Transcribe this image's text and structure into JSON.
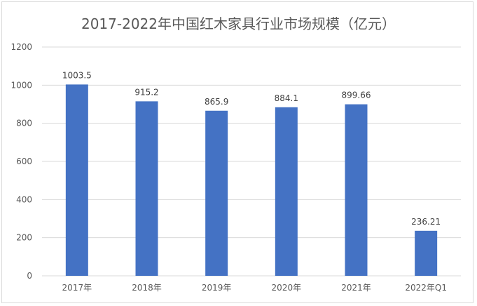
{
  "chart_data": {
    "type": "bar",
    "title": "2017-2022年中国红木家具行业市场规模（亿元）",
    "categories": [
      "2017年",
      "2018年",
      "2019年",
      "2020年",
      "2021年",
      "2022年Q1"
    ],
    "values": [
      1003.5,
      915.2,
      865.9,
      884.1,
      899.66,
      236.21
    ],
    "data_labels": [
      "1003.5",
      "915.2",
      "865.9",
      "884.1",
      "899.66",
      "236.21"
    ],
    "ylim": [
      0,
      1200
    ],
    "yticks": [
      0,
      200,
      400,
      600,
      800,
      1000,
      1200
    ],
    "grid": true,
    "bar_color": "#4472c4",
    "grid_color": "#d9d9d9"
  }
}
